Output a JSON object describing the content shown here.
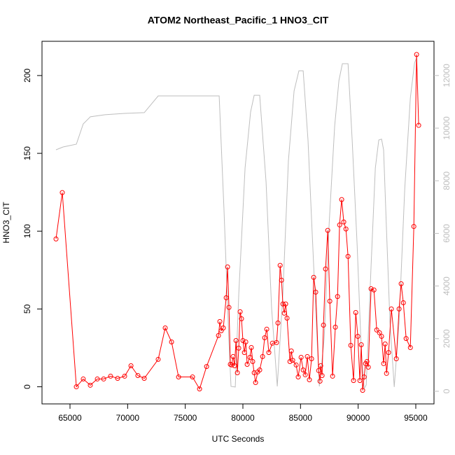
{
  "chart_data": {
    "type": "line",
    "title": "ATOM2 Northeast_Pacific_1 HNO3_CIT",
    "x_label": "UTC Seconds",
    "y_label": "HNO3_CIT",
    "xlim": [
      62570,
      96580
    ],
    "ylim": [
      -11,
      222
    ],
    "y2lim": [
      -480,
      13300
    ],
    "xticks": [
      65000,
      70000,
      75000,
      80000,
      85000,
      90000,
      95000
    ],
    "yticks": [
      0,
      50,
      100,
      150,
      200
    ],
    "y2ticks": [
      0,
      2000,
      4000,
      6000,
      8000,
      10000,
      12000
    ],
    "series": [
      {
        "color": "#ff0000",
        "markers": true,
        "x": [
          63785,
          64330,
          65550,
          66150,
          66760,
          67370,
          67920,
          68520,
          69130,
          69740,
          70290,
          70890,
          71440,
          72650,
          73260,
          73810,
          74420,
          75630,
          76240,
          76850,
          77880,
          78000,
          78120,
          78300,
          78550,
          78670,
          78790,
          78910,
          79030,
          79150,
          79280,
          79400,
          79520,
          79640,
          79760,
          79880,
          80000,
          80130,
          80250,
          80370,
          80610,
          80730,
          80850,
          80980,
          81100,
          81280,
          81460,
          81710,
          81890,
          82070,
          82250,
          82560,
          82920,
          83040,
          83230,
          83350,
          83470,
          83590,
          83710,
          83830,
          84080,
          84200,
          84320,
          84620,
          84800,
          85050,
          85230,
          85410,
          85590,
          85770,
          85960,
          86140,
          86320,
          86570,
          86690,
          86750,
          86870,
          86990,
          87170,
          87360,
          87540,
          87780,
          88020,
          88210,
          88390,
          88570,
          88750,
          88940,
          89120,
          89360,
          89600,
          89790,
          89970,
          90150,
          90270,
          90390,
          90520,
          90640,
          90760,
          90880,
          91120,
          91370,
          91610,
          91850,
          92030,
          92210,
          92340,
          92460,
          92640,
          92880,
          93310,
          93550,
          93730,
          93920,
          94160,
          94530,
          94830,
          95070,
          95250
        ],
        "values": [
          95,
          124.8,
          0,
          5,
          1,
          5,
          5,
          6.8,
          5.4,
          6.8,
          13.5,
          7.2,
          5.4,
          17.6,
          37.8,
          28.8,
          6.3,
          6.3,
          -1.4,
          13,
          32.9,
          41.9,
          36,
          37.8,
          57.2,
          77,
          51,
          14.4,
          14,
          19.4,
          13.5,
          29.7,
          9,
          24.8,
          48.2,
          43.7,
          29.7,
          22,
          28.8,
          14.4,
          18.9,
          25.2,
          16.2,
          9,
          2.7,
          9.5,
          10.8,
          19.4,
          31.5,
          37,
          22,
          28,
          28.4,
          41,
          78,
          68.5,
          53.2,
          47.3,
          53.2,
          44.1,
          16.2,
          23,
          17,
          14,
          6.3,
          18.9,
          10.8,
          7.7,
          19.4,
          4.5,
          18,
          70.3,
          60.8,
          10.4,
          3.6,
          13.5,
          7.2,
          39.6,
          75.7,
          100.5,
          55,
          6.8,
          38.3,
          58,
          104,
          120.3,
          105.9,
          101.4,
          83.8,
          26.6,
          4,
          47.7,
          32.4,
          4,
          27,
          -2.3,
          6.3,
          14.9,
          16.2,
          12.6,
          63,
          62.2,
          36.5,
          34.7,
          32.4,
          14.9,
          27.5,
          8.6,
          22,
          50,
          18,
          50,
          66.2,
          54,
          31,
          25.2,
          103,
          213.5,
          168
        ]
      },
      {
        "color": "#bebebe",
        "axis": "y2",
        "markers": false,
        "x": [
          63785,
          64390,
          65550,
          66150,
          66760,
          68040,
          69740,
          71440,
          72650,
          77940,
          78360,
          78790,
          78970,
          79340,
          79640,
          80190,
          80670,
          80980,
          81460,
          82010,
          82490,
          82980,
          83470,
          83950,
          84440,
          84860,
          85230,
          85650,
          86140,
          86630,
          87050,
          87480,
          87960,
          88330,
          88630,
          89120,
          89480,
          89910,
          90270,
          90520,
          90700,
          91120,
          91490,
          91790,
          92030,
          92210,
          92460,
          92760,
          93130,
          93550,
          94040,
          94530,
          94890,
          95130
        ],
        "values": [
          9177,
          9283,
          9390,
          10160,
          10430,
          10510,
          10560,
          10590,
          11225,
          11225,
          6890,
          1835,
          186,
          160,
          3700,
          8485,
          10615,
          11250,
          11250,
          7950,
          3165,
          186,
          3700,
          8750,
          11410,
          12180,
          12180,
          9550,
          4760,
          186,
          1970,
          6360,
          10080,
          11810,
          12450,
          12450,
          9550,
          5560,
          1570,
          106,
          240,
          4760,
          8485,
          9550,
          9580,
          9177,
          6090,
          2630,
          160,
          2630,
          7690,
          11145,
          12475,
          12740
        ]
      }
    ]
  }
}
